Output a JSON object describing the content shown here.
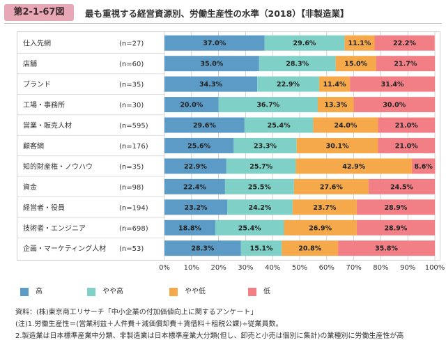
{
  "header": {
    "figure_number": "第2-1-67図",
    "title": "最も重視する経営資源別、労働生産性の水準（2018）【非製造業】"
  },
  "chart_data": {
    "type": "bar",
    "orientation": "horizontal",
    "stacked": true,
    "percent": true,
    "categories": [
      "仕入先網",
      "店舗",
      "ブランド",
      "工場・事務所",
      "営業・販売人材",
      "顧客網",
      "知的財産権・ノウハウ",
      "資金",
      "経営者・役員",
      "技術者・エンジニア",
      "企画・マーケティング人材"
    ],
    "sample_sizes": [
      "(n=27)",
      "(n=60)",
      "(n=35)",
      "(n=30)",
      "(n=595)",
      "(n=176)",
      "(n=35)",
      "(n=98)",
      "(n=194)",
      "(n=698)",
      "(n=53)"
    ],
    "series": [
      {
        "name": "高",
        "color": "#5b9bc6",
        "values": [
          37.0,
          35.0,
          34.3,
          20.0,
          29.6,
          25.6,
          22.9,
          22.4,
          23.2,
          18.8,
          28.3
        ]
      },
      {
        "name": "やや高",
        "color": "#7fd1c7",
        "values": [
          29.6,
          28.3,
          22.9,
          36.7,
          25.4,
          23.3,
          25.7,
          25.5,
          24.2,
          25.4,
          15.1
        ]
      },
      {
        "name": "やや低",
        "color": "#f5a94a",
        "values": [
          11.1,
          15.0,
          11.4,
          13.3,
          24.0,
          30.1,
          42.9,
          27.6,
          23.7,
          26.9,
          20.8
        ]
      },
      {
        "name": "低",
        "color": "#f27f86",
        "values": [
          22.2,
          21.7,
          31.4,
          30.0,
          21.0,
          21.0,
          8.6,
          24.5,
          28.9,
          28.9,
          35.8
        ]
      }
    ],
    "value_labels": [
      [
        "37.0%",
        "29.6%",
        "11.1%",
        "22.2%"
      ],
      [
        "35.0%",
        "28.3%",
        "15.0%",
        "21.7%"
      ],
      [
        "34.3%",
        "22.9%",
        "11.4%",
        "31.4%"
      ],
      [
        "20.0%",
        "36.7%",
        "13.3%",
        "30.0%"
      ],
      [
        "29.6%",
        "25.4%",
        "24.0%",
        "21.0%"
      ],
      [
        "25.6%",
        "23.3%",
        "30.1%",
        "21.0%"
      ],
      [
        "22.9%",
        "25.7%",
        "42.9%",
        "8.6%"
      ],
      [
        "22.4%",
        "25.5%",
        "27.6%",
        "24.5%"
      ],
      [
        "23.2%",
        "24.2%",
        "23.7%",
        "28.9%"
      ],
      [
        "18.8%",
        "25.4%",
        "26.9%",
        "28.9%"
      ],
      [
        "28.3%",
        "15.1%",
        "20.8%",
        "35.8%"
      ]
    ],
    "x_ticks": [
      "0%",
      "10%",
      "20%",
      "30%",
      "40%",
      "50%",
      "60%",
      "70%",
      "80%",
      "90%",
      "100%"
    ],
    "xlim": [
      0,
      100
    ],
    "legend_position": "bottom"
  },
  "notes": {
    "source": "資料：(株)東京商工リサーチ「中小企業の付加価値向上に関するアンケート」",
    "note1": "(注)1.労働生産性＝(営業利益＋人件費＋減価償却費＋賃借料＋租税公課)÷従業員数。",
    "note2": "2.製造業は日本標準産業中分類、非製造業は日本標準産業大分類(但し、卸売と小売は個別に集計)の業種別に労働生産性が高"
  }
}
